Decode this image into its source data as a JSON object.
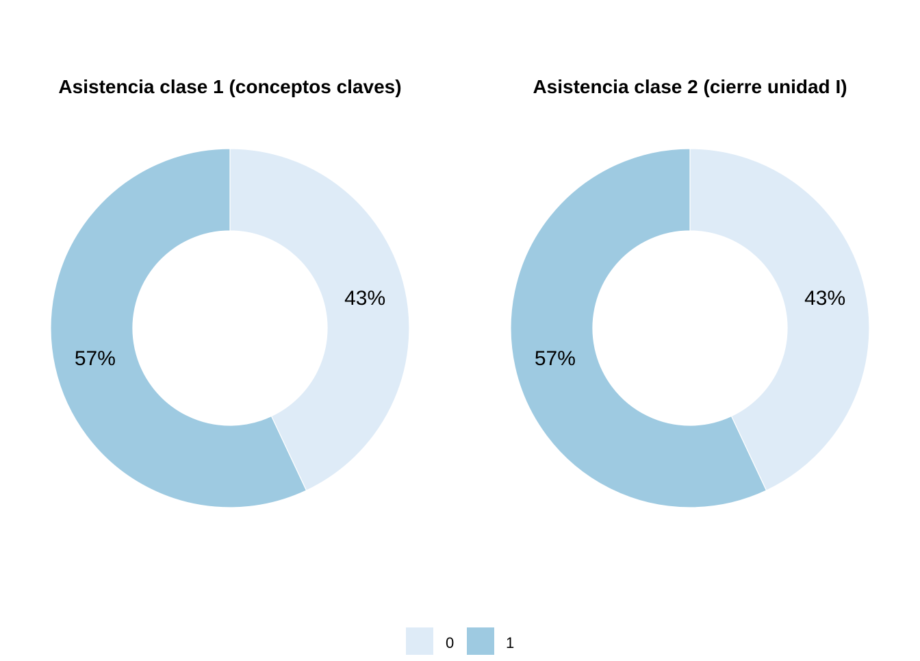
{
  "chart_data": [
    {
      "type": "pie",
      "title": "Asistencia clase 1 (conceptos claves)",
      "categories": [
        "0",
        "1"
      ],
      "values": [
        43,
        57
      ],
      "labels": [
        "43%",
        "57%"
      ],
      "colors": [
        "#deebf7",
        "#9ecae1"
      ],
      "donut": true
    },
    {
      "type": "pie",
      "title": "Asistencia clase 2 (cierre unidad I)",
      "categories": [
        "0",
        "1"
      ],
      "values": [
        43,
        57
      ],
      "labels": [
        "43%",
        "57%"
      ],
      "colors": [
        "#deebf7",
        "#9ecae1"
      ],
      "donut": true
    }
  ],
  "legend": {
    "placement": "bottom",
    "items": [
      {
        "label": "0",
        "color": "#deebf7"
      },
      {
        "label": "1",
        "color": "#9ecae1"
      }
    ]
  }
}
